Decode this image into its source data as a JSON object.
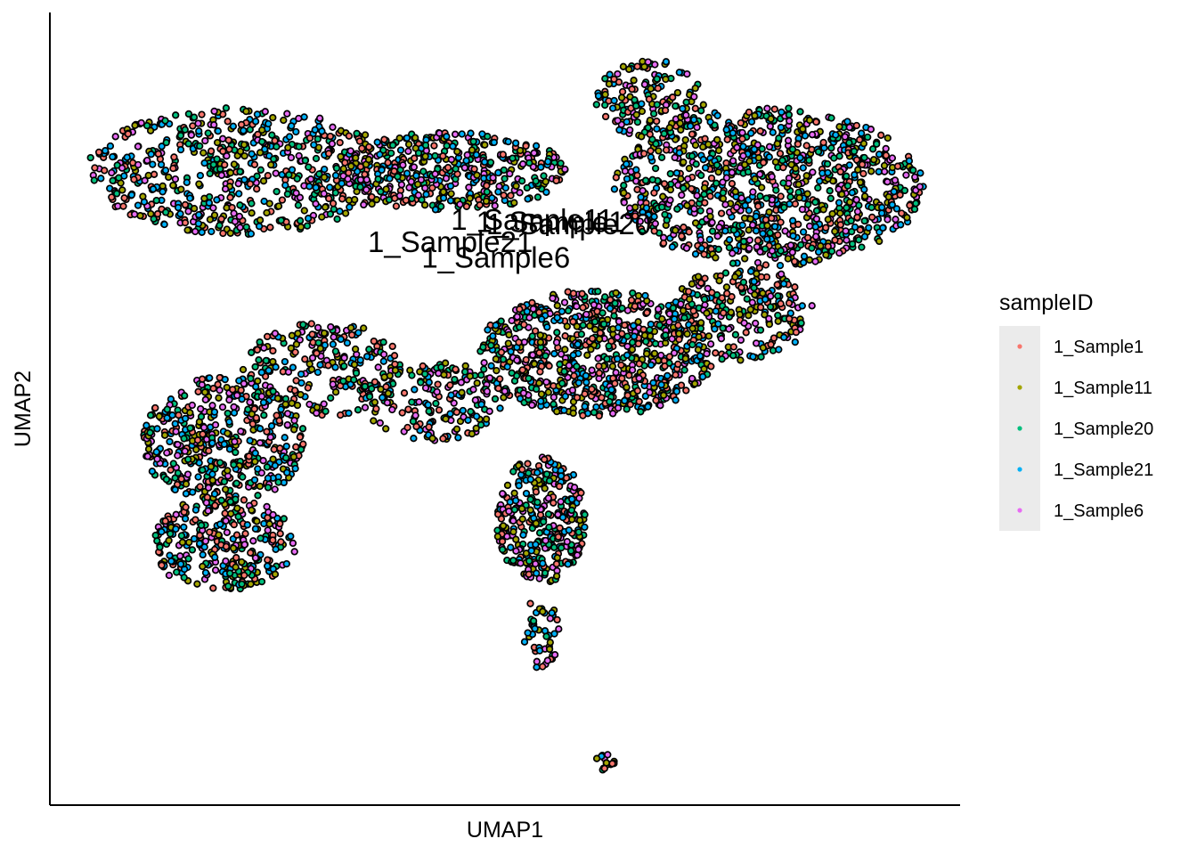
{
  "chart_data": {
    "type": "scatter",
    "title": "",
    "xlabel": "UMAP1",
    "ylabel": "UMAP2",
    "xlim": [
      0,
      100
    ],
    "ylim": [
      0,
      100
    ],
    "axis_ticks": false,
    "grid": false,
    "legend": {
      "title": "sampleID",
      "placement": "right",
      "key_background": "#ebebeb"
    },
    "point_style": {
      "fill": "by-series",
      "outline": "#000000"
    },
    "series": [
      {
        "name": "1_Sample1",
        "color": "#F8766D"
      },
      {
        "name": "1_Sample11",
        "color": "#A3A500"
      },
      {
        "name": "1_Sample20",
        "color": "#00BF7D"
      },
      {
        "name": "1_Sample21",
        "color": "#00B0F6"
      },
      {
        "name": "1_Sample6",
        "color": "#E76BF3"
      }
    ],
    "regions": [
      {
        "comment": "top-left lobe",
        "cx": 21,
        "cy": 80,
        "rx": 17,
        "ry": 8,
        "n": 620
      },
      {
        "comment": "upper middle band",
        "cx": 44,
        "cy": 80,
        "rx": 13,
        "ry": 5,
        "n": 420
      },
      {
        "comment": "top-right lobe",
        "cx": 79,
        "cy": 78,
        "rx": 17,
        "ry": 10,
        "n": 1000
      },
      {
        "comment": "top-right peak",
        "cx": 66,
        "cy": 89,
        "rx": 6,
        "ry": 5,
        "n": 150
      },
      {
        "comment": "center-left bridge",
        "cx": 30,
        "cy": 55,
        "rx": 9,
        "ry": 6,
        "n": 220
      },
      {
        "comment": "left lower lobe",
        "cx": 19,
        "cy": 46,
        "rx": 9,
        "ry": 8,
        "n": 440
      },
      {
        "comment": "left bottom lobe",
        "cx": 19,
        "cy": 33,
        "rx": 8,
        "ry": 6,
        "n": 300
      },
      {
        "comment": "center lower",
        "cx": 42,
        "cy": 51,
        "rx": 8,
        "ry": 5,
        "n": 180
      },
      {
        "comment": "center-right mass",
        "cx": 60,
        "cy": 57,
        "rx": 13,
        "ry": 8,
        "n": 760
      },
      {
        "comment": "right mid wing",
        "cx": 76,
        "cy": 62,
        "rx": 8,
        "ry": 6,
        "n": 240
      },
      {
        "comment": "lower stem",
        "cx": 54,
        "cy": 36,
        "rx": 5,
        "ry": 8,
        "n": 330
      },
      {
        "comment": "stem tail",
        "cx": 54,
        "cy": 22,
        "rx": 2,
        "ry": 5,
        "n": 45
      },
      {
        "comment": "outlier blob",
        "cx": 61,
        "cy": 5.5,
        "rx": 1,
        "ry": 1.5,
        "n": 15
      }
    ],
    "labels": [
      {
        "text": "1_Sample1",
        "x": 55,
        "y": 72.3
      },
      {
        "text": "1_Sample11",
        "x": 53,
        "y": 72.6
      },
      {
        "text": "1_Sample20",
        "x": 57,
        "y": 72.0
      },
      {
        "text": "1_Sample21",
        "x": 44,
        "y": 69.8
      },
      {
        "text": "1_Sample6",
        "x": 49,
        "y": 67.8
      }
    ]
  }
}
